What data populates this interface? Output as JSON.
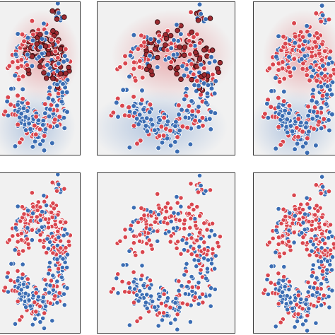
{
  "colors": {
    "red": "#d9464e",
    "blue": "#3b6db3",
    "dark_red": "#9c2a30",
    "background": "#f1f1f1",
    "heat_red": "#e8a3a6",
    "heat_blue": "#a9bfdd"
  },
  "chart_data": [
    {
      "type": "scatter",
      "panel": "top-left",
      "background": "heatmap",
      "highlighted": true,
      "grid": false,
      "legend": "none"
    },
    {
      "type": "scatter",
      "panel": "top-center",
      "background": "heatmap",
      "highlighted": true,
      "grid": false,
      "legend": "none"
    },
    {
      "type": "scatter",
      "panel": "top-right",
      "background": "heatmap",
      "highlighted": false,
      "grid": false,
      "legend": "none"
    },
    {
      "type": "scatter",
      "panel": "bottom-left",
      "background": "plain",
      "highlighted": false,
      "grid": false,
      "legend": "none"
    },
    {
      "type": "scatter",
      "panel": "bottom-center",
      "background": "plain",
      "highlighted": false,
      "grid": false,
      "legend": "none"
    },
    {
      "type": "scatter",
      "panel": "bottom-right",
      "background": "plain",
      "highlighted": false,
      "grid": false,
      "legend": "none"
    }
  ]
}
